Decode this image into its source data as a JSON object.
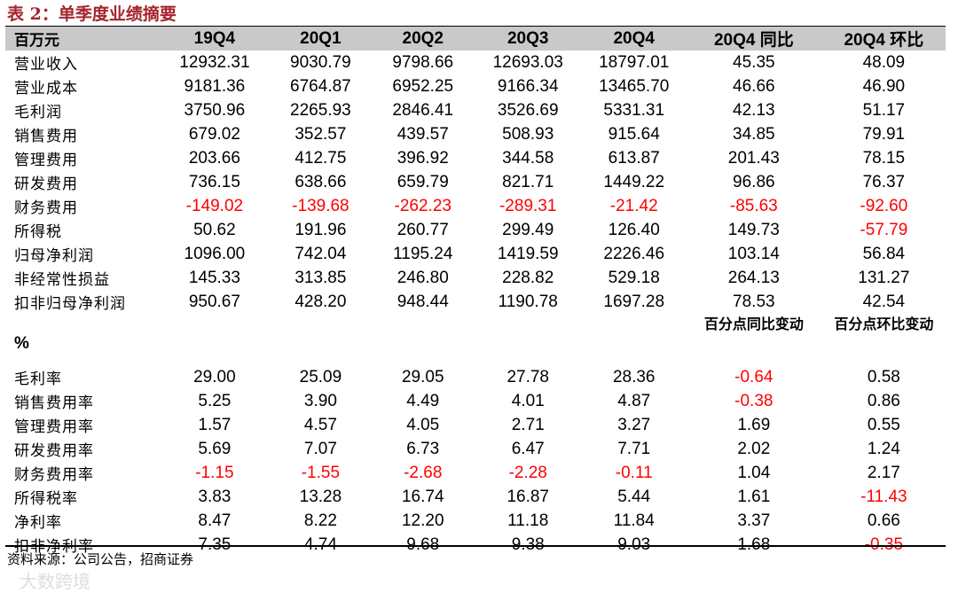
{
  "title": "表 2：单季度业绩摘要",
  "header": {
    "unit": "百万元",
    "columns": [
      "19Q4",
      "20Q1",
      "20Q2",
      "20Q3",
      "20Q4",
      "20Q4 同比",
      "20Q4 环比"
    ]
  },
  "section1_rows": [
    {
      "label": "营业收入",
      "values": [
        "12932.31",
        "9030.79",
        "9798.66",
        "12693.03",
        "18797.01",
        "45.35",
        "48.09"
      ]
    },
    {
      "label": "营业成本",
      "values": [
        "9181.36",
        "6764.87",
        "6952.25",
        "9166.34",
        "13465.70",
        "46.66",
        "46.90"
      ]
    },
    {
      "label": "毛利润",
      "values": [
        "3750.96",
        "2265.93",
        "2846.41",
        "3526.69",
        "5331.31",
        "42.13",
        "51.17"
      ]
    },
    {
      "label": "销售费用",
      "values": [
        "679.02",
        "352.57",
        "439.57",
        "508.93",
        "915.64",
        "34.85",
        "79.91"
      ]
    },
    {
      "label": "管理费用",
      "values": [
        "203.66",
        "412.75",
        "396.92",
        "344.58",
        "613.87",
        "201.43",
        "78.15"
      ]
    },
    {
      "label": "研发费用",
      "values": [
        "736.15",
        "638.66",
        "659.79",
        "821.71",
        "1449.22",
        "96.86",
        "76.37"
      ]
    },
    {
      "label": "财务费用",
      "values": [
        "-149.02",
        "-139.68",
        "-262.23",
        "-289.31",
        "-21.42",
        "-85.63",
        "-92.60"
      ]
    },
    {
      "label": "所得税",
      "values": [
        "50.62",
        "191.96",
        "260.77",
        "299.49",
        "126.40",
        "149.73",
        "-57.79"
      ]
    },
    {
      "label": "归母净利润",
      "values": [
        "1096.00",
        "742.04",
        "1195.24",
        "1419.59",
        "2226.46",
        "103.14",
        "56.84"
      ]
    },
    {
      "label": "非经常性损益",
      "values": [
        "145.33",
        "313.85",
        "246.80",
        "228.82",
        "529.18",
        "264.13",
        "131.27"
      ]
    },
    {
      "label": "扣非归母净利润",
      "values": [
        "950.67",
        "428.20",
        "948.44",
        "1190.78",
        "1697.28",
        "78.53",
        "42.54"
      ]
    }
  ],
  "section2_header": {
    "unit": "%",
    "yoy_change": "百分点同比变动",
    "qoq_change": "百分点环比变动"
  },
  "section2_rows": [
    {
      "label": "毛利率",
      "values": [
        "29.00",
        "25.09",
        "29.05",
        "27.78",
        "28.36",
        "-0.64",
        "0.58"
      ]
    },
    {
      "label": "销售费用率",
      "values": [
        "5.25",
        "3.90",
        "4.49",
        "4.01",
        "4.87",
        "-0.38",
        "0.86"
      ]
    },
    {
      "label": "管理费用率",
      "values": [
        "1.57",
        "4.57",
        "4.05",
        "2.71",
        "3.27",
        "1.69",
        "0.55"
      ]
    },
    {
      "label": "研发费用率",
      "values": [
        "5.69",
        "7.07",
        "6.73",
        "6.47",
        "7.71",
        "2.02",
        "1.24"
      ]
    },
    {
      "label": "财务费用率",
      "values": [
        "-1.15",
        "-1.55",
        "-2.68",
        "-2.28",
        "-0.11",
        "1.04",
        "2.17"
      ]
    },
    {
      "label": "所得税率",
      "values": [
        "3.83",
        "13.28",
        "16.74",
        "16.87",
        "5.44",
        "1.61",
        "-11.43"
      ]
    },
    {
      "label": "净利率",
      "values": [
        "8.47",
        "8.22",
        "12.20",
        "11.18",
        "11.84",
        "3.37",
        "0.66"
      ]
    },
    {
      "label": "扣非净利率",
      "values": [
        "7.35",
        "4.74",
        "9.68",
        "9.38",
        "9.03",
        "1.68",
        "-0.35"
      ]
    }
  ],
  "footer": "资料来源：公司公告，招商证券",
  "watermark": "大数跨境",
  "colors": {
    "title": "#a6242d",
    "header_bg": "#c9c9c9",
    "negative": "#ff0000"
  }
}
